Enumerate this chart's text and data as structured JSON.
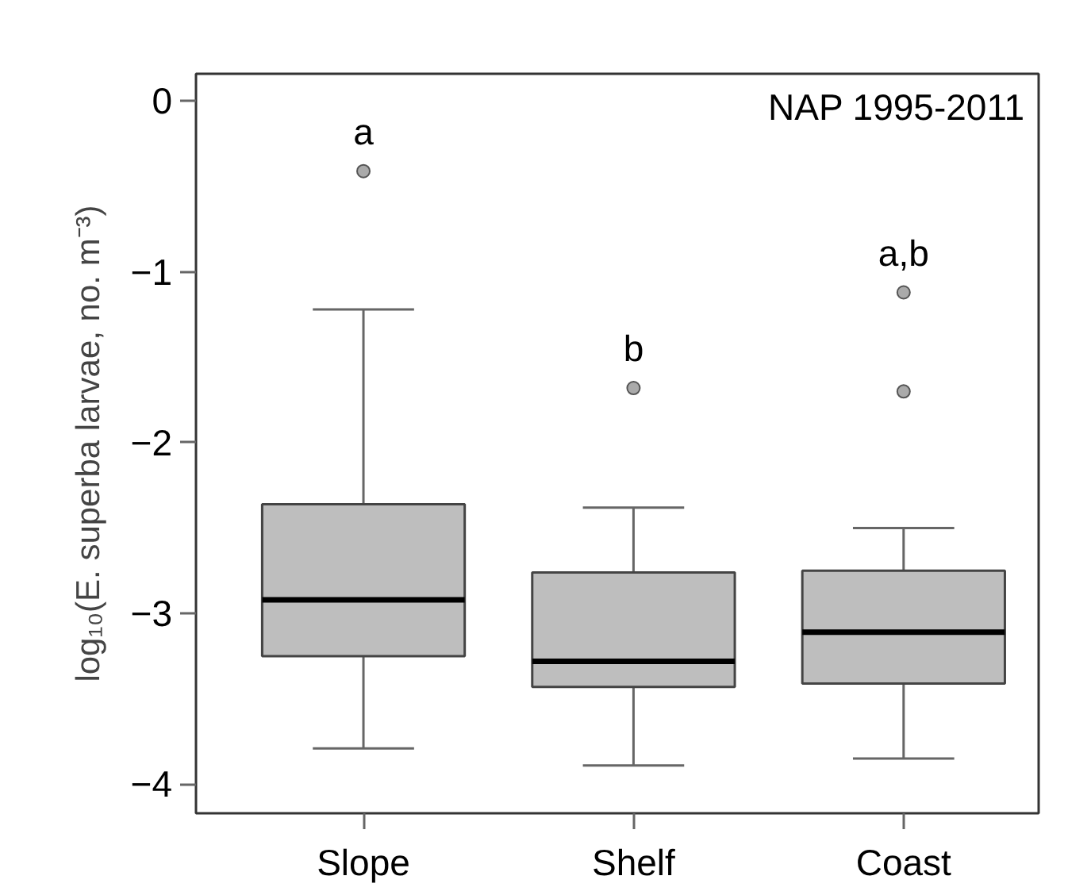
{
  "chart_data": {
    "type": "box",
    "categories": [
      "Slope",
      "Shelf",
      "Coast"
    ],
    "boxes": [
      {
        "low": -3.79,
        "q1": -3.25,
        "median": -2.92,
        "q3": -2.36,
        "high": -1.22,
        "outliers": [
          -0.41
        ]
      },
      {
        "low": -3.89,
        "q1": -3.43,
        "median": -3.28,
        "q3": -2.76,
        "high": -2.38,
        "outliers": [
          -1.68
        ]
      },
      {
        "low": -3.85,
        "q1": -3.41,
        "median": -3.11,
        "q3": -2.75,
        "high": -2.5,
        "outliers": [
          -1.12,
          -1.7
        ]
      }
    ],
    "color": "#bebebe",
    "ylabel": "log₁₀(E. superba larvae, no. m⁻³)",
    "ylim": [
      -4.17,
      0.16
    ],
    "yticks": [
      0,
      -1,
      -2,
      -3,
      -4
    ],
    "annotations": [
      "a",
      "b",
      "a,b",
      "NAP 1995-2011"
    ],
    "grid": false
  }
}
